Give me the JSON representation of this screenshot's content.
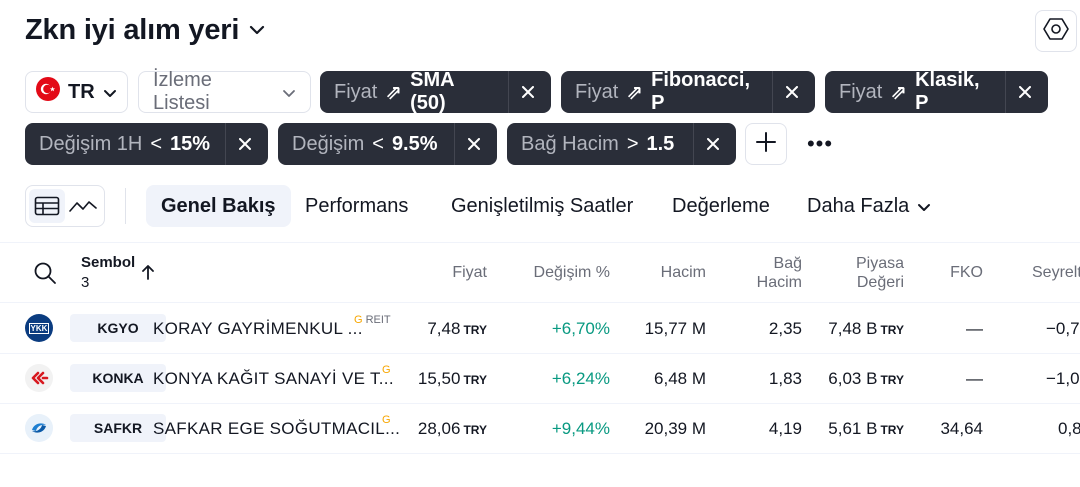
{
  "header": {
    "title": "Zkn iyi alım yeri"
  },
  "icons": {
    "settings": "settings-hex-icon",
    "chevron": "chevron-down-icon",
    "close": "close-icon",
    "search": "search-icon",
    "sort": "sort-up-arrow-icon"
  },
  "filters": {
    "market": {
      "label": "TR"
    },
    "watchlist": {
      "label": "İzleme Listesi"
    },
    "chips": [
      {
        "label": "Fiyat",
        "operator": "⇗",
        "value": "SMA (50)"
      },
      {
        "label": "Fiyat",
        "operator": "⇗",
        "value": "Fibonacci, P"
      },
      {
        "label": "Fiyat",
        "operator": "⇗",
        "value": "Klasik, P"
      },
      {
        "label": "Değişim 1H",
        "operator": "<",
        "value": "15%"
      },
      {
        "label": "Değişim",
        "operator": "<",
        "value": "9.5%"
      },
      {
        "label": "Bağ Hacim",
        "operator": ">",
        "value": "1.5"
      }
    ],
    "more": "•••"
  },
  "tabs": [
    "Genel Bakış",
    "Performans",
    "Genişletilmiş Saatler",
    "Değerleme",
    "Daha Fazla"
  ],
  "table": {
    "headers": {
      "symbol": "Sembol",
      "count": "3",
      "price": "Fiyat",
      "change": "Değişim %",
      "volume": "Hacim",
      "relvol1": "Bağ",
      "relvol2": "Hacim",
      "mcap1": "Piyasa",
      "mcap2": "Değeri",
      "pe": "FKO",
      "diluted": "Seyrelt"
    },
    "rows": [
      {
        "ticker": "KGYO",
        "name": "KORAY GAYRİMENKUL ...",
        "badge": "G",
        "badge2": "REIT",
        "price": "7,48",
        "price_unit": "TRY",
        "change": "+6,70%",
        "volume": "15,77 M",
        "relvol": "2,35",
        "mcap": "7,48 B",
        "mcap_unit": "TRY",
        "pe": "—",
        "diluted": "−0,7"
      },
      {
        "ticker": "KONKA",
        "name": "KONYA KAĞIT SANAYİ VE T...",
        "badge": "G",
        "badge2": "",
        "price": "15,50",
        "price_unit": "TRY",
        "change": "+6,24%",
        "volume": "6,48 M",
        "relvol": "1,83",
        "mcap": "6,03 B",
        "mcap_unit": "TRY",
        "pe": "—",
        "diluted": "−1,0"
      },
      {
        "ticker": "SAFKR",
        "name": "SAFKAR EGE SOĞUTMACIL...",
        "badge": "G",
        "badge2": "",
        "price": "28,06",
        "price_unit": "TRY",
        "change": "+9,44%",
        "volume": "20,39 M",
        "relvol": "4,19",
        "mcap": "5,61 B",
        "mcap_unit": "TRY",
        "pe": "34,64",
        "diluted": "0,8"
      }
    ]
  },
  "logos": {
    "kgyo_text": "YKK"
  }
}
